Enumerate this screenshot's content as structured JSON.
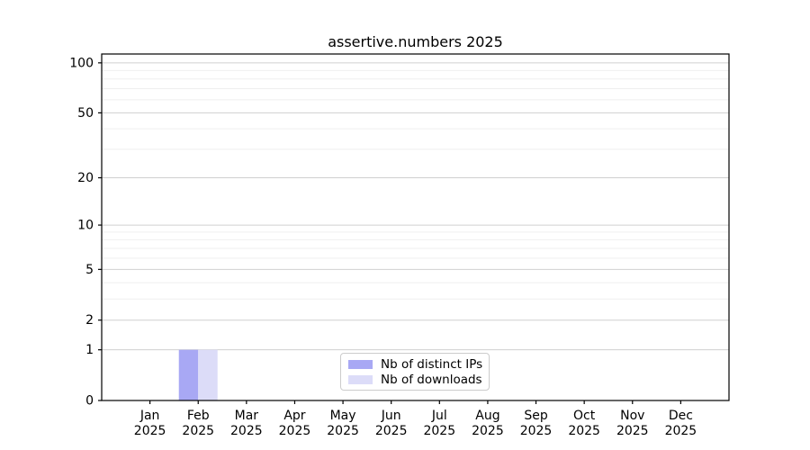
{
  "chart_data": {
    "type": "bar",
    "title": "assertive.numbers 2025",
    "year": "2025",
    "categories": [
      "Jan",
      "Feb",
      "Mar",
      "Apr",
      "May",
      "Jun",
      "Jul",
      "Aug",
      "Sep",
      "Oct",
      "Nov",
      "Dec"
    ],
    "series": [
      {
        "name": "Nb of distinct IPs",
        "color": "#a8a8f4",
        "values": [
          0,
          1,
          0,
          0,
          0,
          0,
          0,
          0,
          0,
          0,
          0,
          0
        ]
      },
      {
        "name": "Nb of downloads",
        "color": "#dcdcf8",
        "values": [
          0,
          1,
          0,
          0,
          0,
          0,
          0,
          0,
          0,
          0,
          0,
          0
        ]
      }
    ],
    "xlabel": "",
    "ylabel": "",
    "y_axis": {
      "scale": "log1p",
      "ticks": [
        0,
        1,
        2,
        5,
        10,
        20,
        50,
        100
      ],
      "minor_gridlines": [
        3,
        4,
        6,
        7,
        8,
        9,
        30,
        40,
        60,
        70,
        80,
        90
      ],
      "top_value": 113
    },
    "grid": true,
    "legend_position": "inside-bottom-center"
  },
  "colors": {
    "background": "#ffffff",
    "spine": "#000000",
    "tick_text": "#000000",
    "grid_major": "#d0d0d0",
    "grid_minor": "#efefef",
    "legend_border": "#cccccc"
  }
}
